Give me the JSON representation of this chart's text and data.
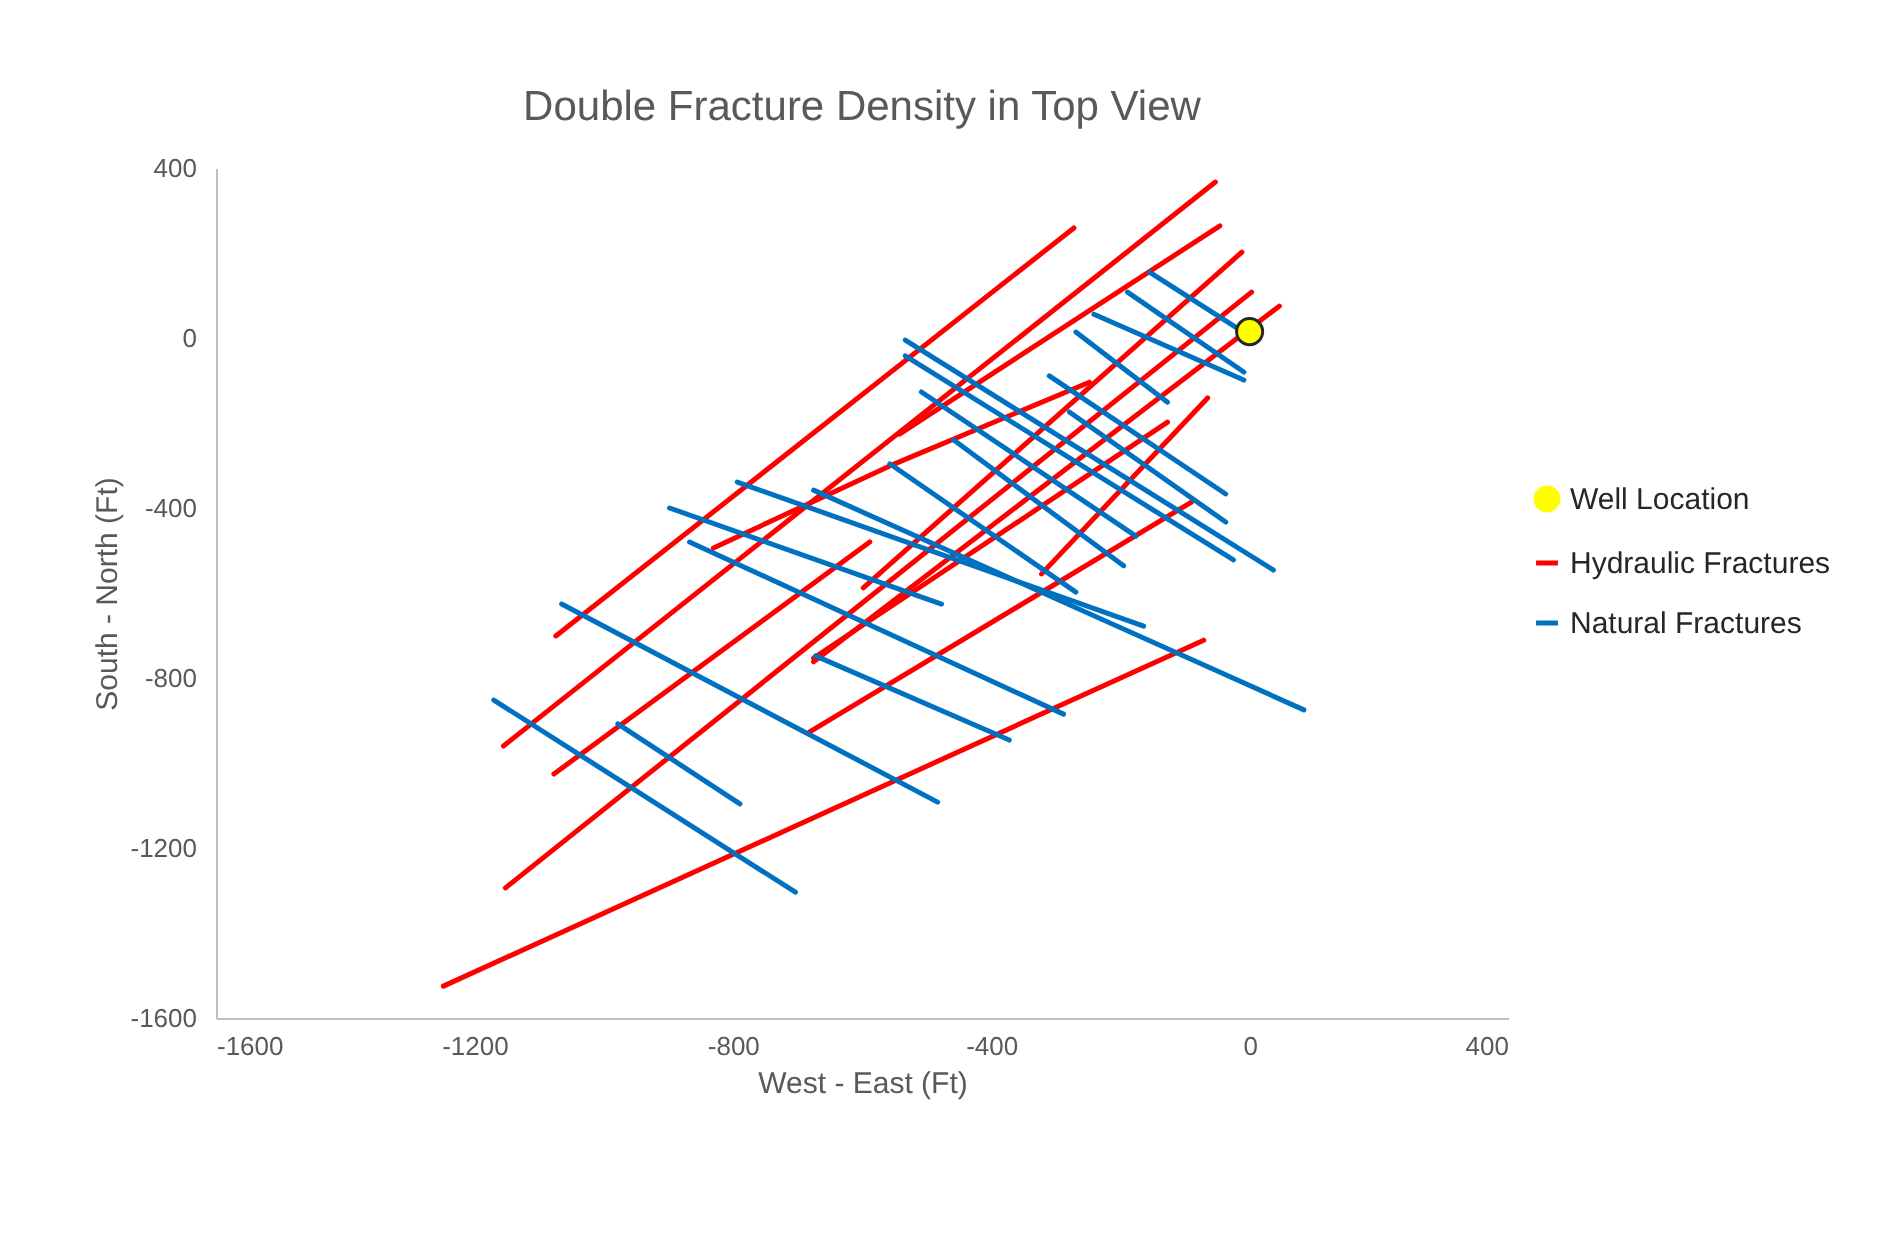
{
  "chart_data": {
    "type": "line",
    "title": "Double Fracture Density in Top View",
    "xlabel": "West - East (Ft)",
    "ylabel": "South - North (Ft)",
    "xlim": [
      -1600,
      400
    ],
    "ylim": [
      -1600,
      400
    ],
    "xticks": [
      -1600,
      -1200,
      -800,
      -400,
      0,
      400
    ],
    "yticks": [
      -1600,
      -1200,
      -800,
      -400,
      0,
      400
    ],
    "grid": false,
    "legend": "right",
    "series": [
      {
        "name": "Well Location",
        "type": "scatter",
        "marker": "circle",
        "color": "#ffff00",
        "x": [
          0
        ],
        "values": [
          15
        ]
      },
      {
        "name": "Hydraulic Fractures",
        "type": "line",
        "color": "#ff0000",
        "x": [
          -1248,
          -71,
          null,
          -1152,
          3,
          null,
          -1077,
          -588,
          null,
          -1155,
          -53,
          null,
          -1074,
          -272,
          null,
          -542,
          -46,
          null,
          -681,
          -90,
          null,
          -675,
          -127,
          null,
          -675,
          46,
          null,
          -598,
          -12,
          null,
          -322,
          -65,
          null,
          -830,
          -557,
          -248
        ],
        "values": [
          -1525,
          -711,
          null,
          -1294,
          108,
          null,
          -1026,
          -480,
          null,
          -960,
          367,
          null,
          -701,
          259,
          null,
          -226,
          264,
          null,
          -927,
          -386,
          null,
          -753,
          -198,
          null,
          -762,
          75,
          null,
          -588,
          202,
          null,
          -555,
          -141,
          null,
          -494,
          -301,
          -104
        ]
      },
      {
        "name": "Natural Fractures",
        "type": "line",
        "color": "#0070c0",
        "x": [
          -1170,
          -703,
          null,
          -978,
          -789,
          null,
          -1065,
          -483,
          null,
          -867,
          -288,
          null,
          -898,
          -477,
          null,
          -793,
          -164,
          null,
          -675,
          84,
          null,
          -672,
          -372,
          null,
          -557,
          -269,
          null,
          -533,
          37,
          null,
          -533,
          -25,
          null,
          -508,
          -176,
          null,
          -458,
          -195,
          null,
          -310,
          -37,
          null,
          -279,
          -37,
          null,
          -269,
          -127,
          null,
          -241,
          -9,
          null,
          -189,
          -9,
          null,
          -155,
          -15
        ],
        "values": [
          -852,
          -1304,
          null,
          -908,
          -1096,
          null,
          -626,
          -1092,
          null,
          -480,
          -885,
          null,
          -400,
          -626,
          null,
          -339,
          -678,
          null,
          -358,
          -875,
          null,
          -748,
          -946,
          null,
          -296,
          -598,
          null,
          -5,
          -546,
          null,
          -42,
          -522,
          null,
          -127,
          -466,
          null,
          -240,
          -536,
          null,
          -89,
          -367,
          null,
          -174,
          -433,
          null,
          14,
          -151,
          null,
          56,
          -99,
          null,
          108,
          -80,
          null,
          155,
          19
        ]
      }
    ]
  }
}
